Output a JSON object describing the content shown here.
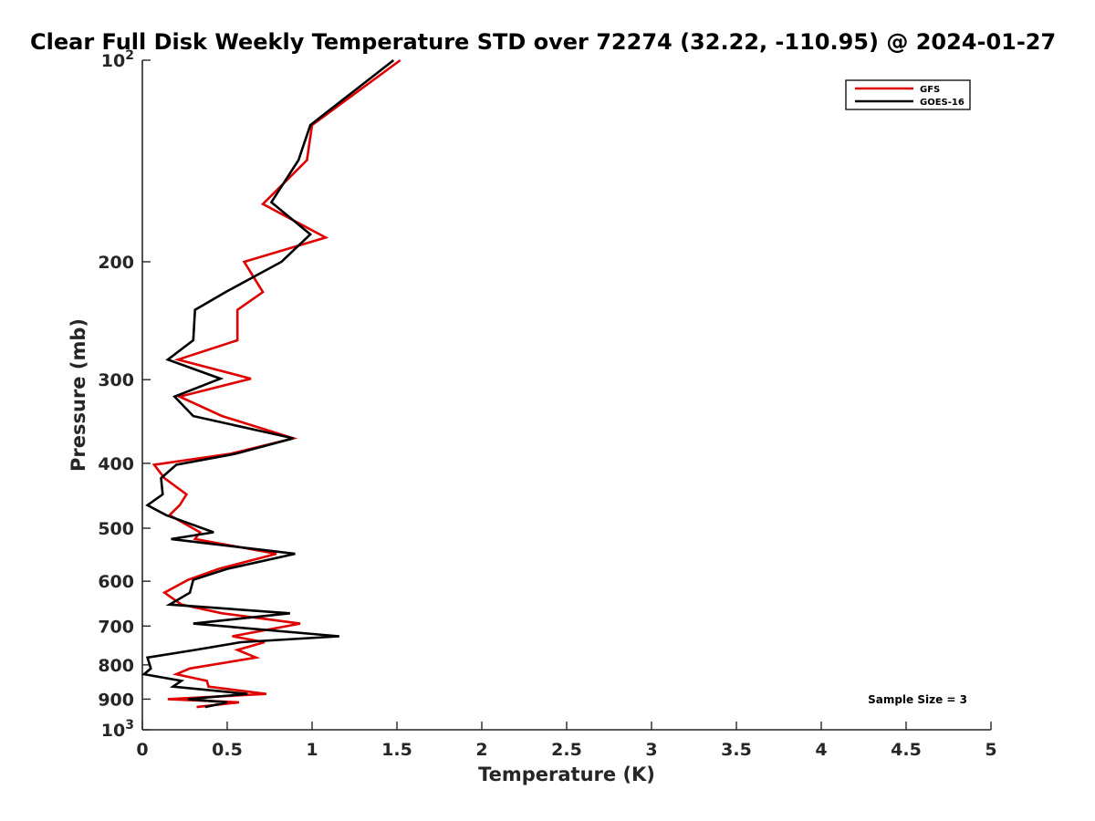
{
  "chart_data": {
    "type": "line",
    "title": "Clear Full Disk Weekly Temperature STD over 72274 (32.22, -110.95) @ 2024-01-27",
    "xlabel": "Temperature (K)",
    "ylabel": "Pressure (mb)",
    "xlim": [
      0,
      5
    ],
    "ylim": [
      100,
      1000
    ],
    "y_scale": "log",
    "y_reversed": true,
    "grid": false,
    "legend_position": "top-right",
    "x_ticks": [
      "0",
      "0.5",
      "1",
      "1.5",
      "2",
      "2.5",
      "3",
      "3.5",
      "4",
      "4.5",
      "5"
    ],
    "y_ticks": [
      {
        "value": 100,
        "label": "10",
        "exp": "2"
      },
      {
        "value": 200,
        "label": "200"
      },
      {
        "value": 300,
        "label": "300"
      },
      {
        "value": 400,
        "label": "400"
      },
      {
        "value": 500,
        "label": "500"
      },
      {
        "value": 600,
        "label": "600"
      },
      {
        "value": 700,
        "label": "700"
      },
      {
        "value": 800,
        "label": "800"
      },
      {
        "value": 900,
        "label": "900"
      },
      {
        "value": 1000,
        "label": "10",
        "exp": "3"
      }
    ],
    "annotation": "Sample Size = 3",
    "series": [
      {
        "name": "GFS",
        "color": "#e00000",
        "points": [
          [
            1.52,
            100
          ],
          [
            1.0,
            125
          ],
          [
            0.97,
            141
          ],
          [
            0.71,
            164
          ],
          [
            1.08,
            184
          ],
          [
            0.6,
            200
          ],
          [
            0.71,
            222
          ],
          [
            0.56,
            236
          ],
          [
            0.56,
            262
          ],
          [
            0.21,
            280
          ],
          [
            0.64,
            299
          ],
          [
            0.22,
            318
          ],
          [
            0.47,
            340
          ],
          [
            0.89,
            367
          ],
          [
            0.52,
            387
          ],
          [
            0.07,
            402
          ],
          [
            0.13,
            421
          ],
          [
            0.26,
            445
          ],
          [
            0.22,
            462
          ],
          [
            0.16,
            478
          ],
          [
            0.34,
            507
          ],
          [
            0.31,
            519
          ],
          [
            0.79,
            546
          ],
          [
            0.45,
            575
          ],
          [
            0.27,
            597
          ],
          [
            0.13,
            624
          ],
          [
            0.23,
            650
          ],
          [
            0.47,
            670
          ],
          [
            0.93,
            694
          ],
          [
            0.53,
            725
          ],
          [
            0.72,
            740
          ],
          [
            0.56,
            760
          ],
          [
            0.67,
            780
          ],
          [
            0.28,
            810
          ],
          [
            0.2,
            826
          ],
          [
            0.38,
            845
          ],
          [
            0.39,
            862
          ],
          [
            0.73,
            884
          ],
          [
            0.15,
            900
          ],
          [
            0.57,
            910
          ],
          [
            0.32,
            925
          ]
        ]
      },
      {
        "name": "GOES-16",
        "color": "#000000",
        "points": [
          [
            1.48,
            100
          ],
          [
            0.99,
            125
          ],
          [
            0.92,
            141
          ],
          [
            0.76,
            163
          ],
          [
            0.99,
            182
          ],
          [
            0.82,
            200
          ],
          [
            0.49,
            222
          ],
          [
            0.31,
            236
          ],
          [
            0.3,
            262
          ],
          [
            0.15,
            280
          ],
          [
            0.46,
            299
          ],
          [
            0.19,
            318
          ],
          [
            0.3,
            340
          ],
          [
            0.89,
            367
          ],
          [
            0.55,
            387
          ],
          [
            0.2,
            402
          ],
          [
            0.11,
            421
          ],
          [
            0.12,
            445
          ],
          [
            0.03,
            462
          ],
          [
            0.14,
            478
          ],
          [
            0.42,
            507
          ],
          [
            0.17,
            519
          ],
          [
            0.9,
            546
          ],
          [
            0.5,
            575
          ],
          [
            0.3,
            597
          ],
          [
            0.28,
            624
          ],
          [
            0.16,
            650
          ],
          [
            0.87,
            670
          ],
          [
            0.3,
            694
          ],
          [
            1.16,
            725
          ],
          [
            0.58,
            740
          ],
          [
            0.31,
            760
          ],
          [
            0.03,
            780
          ],
          [
            0.05,
            810
          ],
          [
            0.01,
            826
          ],
          [
            0.23,
            845
          ],
          [
            0.18,
            862
          ],
          [
            0.62,
            884
          ],
          [
            0.27,
            900
          ],
          [
            0.5,
            910
          ],
          [
            0.37,
            925
          ]
        ]
      }
    ]
  }
}
